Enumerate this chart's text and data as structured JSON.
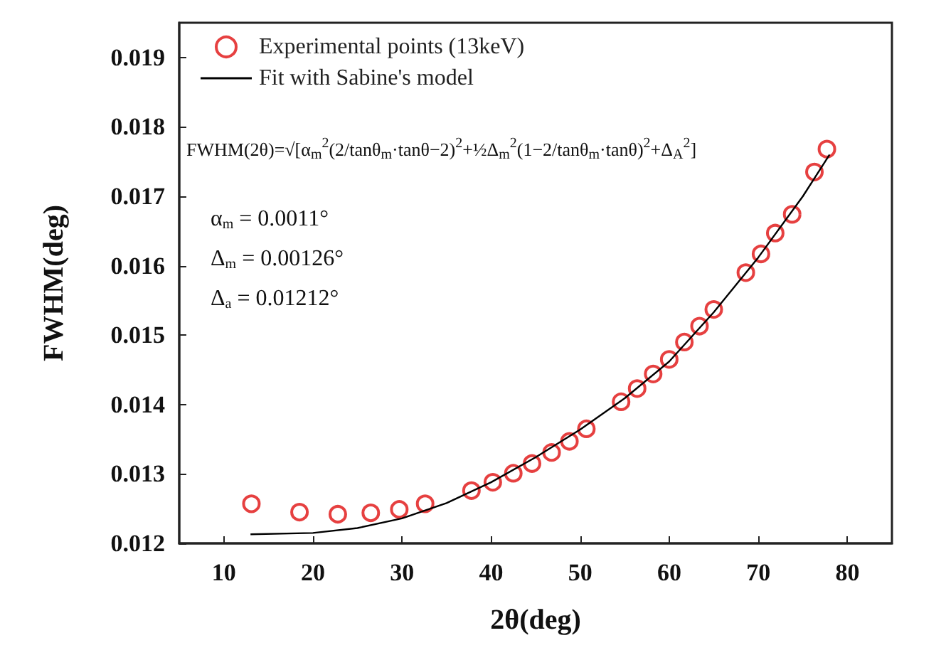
{
  "chart_data": {
    "type": "scatter",
    "xlabel": "2θ(deg)",
    "ylabel": "FWHM(deg)",
    "xlim": [
      5,
      85
    ],
    "xticks": [
      10,
      20,
      30,
      40,
      50,
      60,
      70,
      80
    ],
    "ylim": [
      0.012,
      0.0195
    ],
    "yticks": [
      0.012,
      0.013,
      0.014,
      0.015,
      0.016,
      0.017,
      0.018,
      0.019
    ],
    "grid": false,
    "legend": "top left",
    "annotations": [
      "FWHM(2θ)=√[α$_{m}$$^{2}$(2/tanθ$_{m}$·tanθ−2)$^{2}$+½Δ$_{m}$$^{2}$(1−2/tanθ$_{m}$·tanθ)$^{2}$+Δ$_{A}$$^{2}$]",
      "α$_{m}$ = 0.0011°",
      "Δ$_{m}$ = 0.00126°",
      "Δ$_{a}$ = 0.01212°"
    ],
    "series": [
      {
        "name": "Experimental points (13keV)",
        "marker": "circle",
        "color": "#e01010",
        "x": [
          13.1,
          18.5,
          22.8,
          26.5,
          29.7,
          32.6,
          37.8,
          40.2,
          42.5,
          44.6,
          46.8,
          48.8,
          50.7,
          54.6,
          56.4,
          58.2,
          60.0,
          61.7,
          63.4,
          65.0,
          68.6,
          70.3,
          71.9,
          73.8,
          76.3,
          77.7
        ],
        "values": [
          0.01257,
          0.01245,
          0.01242,
          0.01244,
          0.01249,
          0.01257,
          0.01276,
          0.01288,
          0.01301,
          0.01315,
          0.01331,
          0.01347,
          0.01365,
          0.01404,
          0.01423,
          0.01444,
          0.01465,
          0.0149,
          0.01513,
          0.01537,
          0.0159,
          0.01617,
          0.01647,
          0.01674,
          0.01735,
          0.01768
        ]
      },
      {
        "name": "Fit with Sabine's model",
        "type": "line",
        "marker": "none",
        "color": "#000000",
        "x": [
          13,
          20,
          25,
          30,
          35,
          40,
          45,
          50,
          55,
          60,
          65,
          70,
          75,
          78
        ],
        "values": [
          0.01213,
          0.01215,
          0.01222,
          0.01236,
          0.01258,
          0.01288,
          0.01324,
          0.01364,
          0.01409,
          0.01462,
          0.01533,
          0.01612,
          0.017,
          0.0176
        ]
      }
    ]
  }
}
